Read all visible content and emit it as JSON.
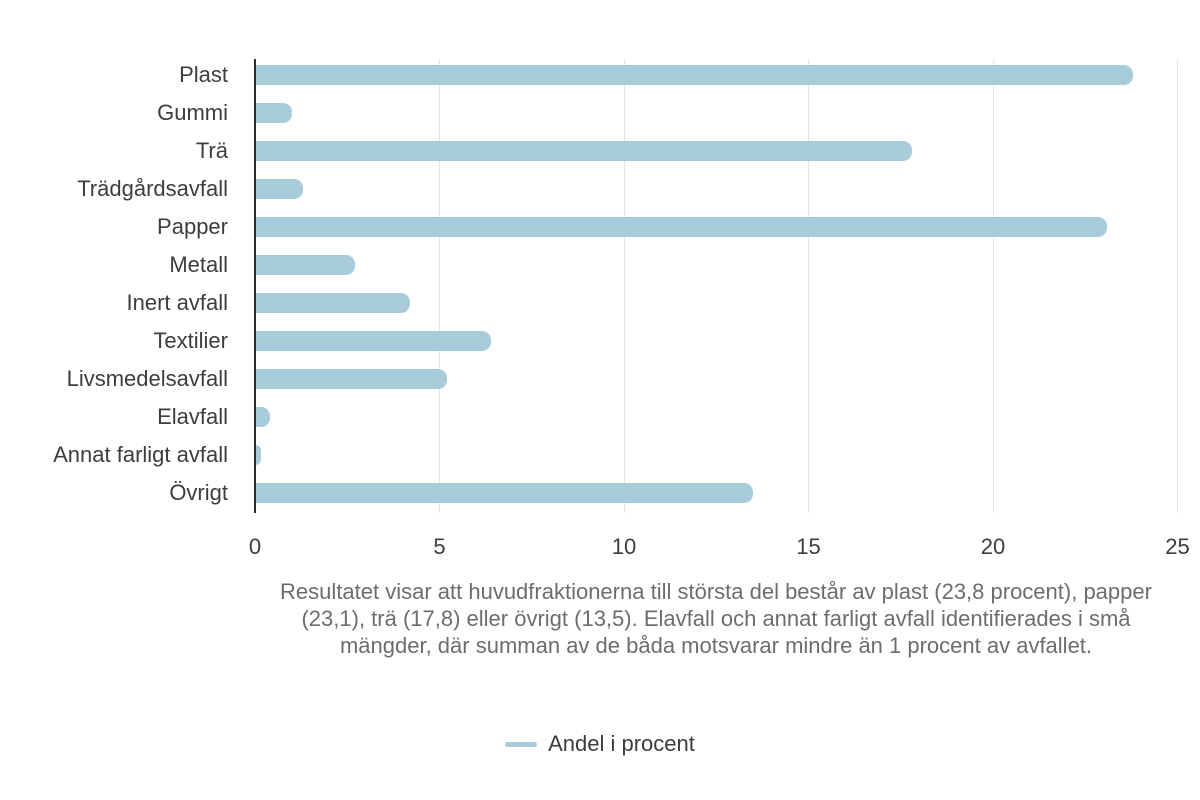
{
  "chart_data": {
    "type": "bar",
    "orientation": "horizontal",
    "title": "",
    "categories": [
      "Plast",
      "Gummi",
      "Trä",
      "Trädgårdsavfall",
      "Papper",
      "Metall",
      "Inert avfall",
      "Textilier",
      "Livsmedelsavfall",
      "Elavfall",
      "Annat farligt avfall",
      "Övrigt"
    ],
    "series": [
      {
        "name": "Andel i procent",
        "values": [
          23.8,
          1.0,
          17.8,
          1.3,
          23.1,
          2.7,
          4.2,
          6.4,
          5.2,
          0.4,
          0.15,
          13.5
        ]
      }
    ],
    "xlabel": "",
    "ylabel": "",
    "xlim": [
      0,
      25
    ],
    "x_ticks": [
      0,
      5,
      10,
      15,
      20,
      25
    ],
    "grid": true,
    "legend_position": "bottom",
    "bar_color": "#a8ccda",
    "caption": "Resultatet visar att huvudfraktionerna till största del består av plast (23,8 procent), papper (23,1), trä (17,8) eller övrigt (13,5). Elavfall och annat farligt avfall identifierades i små mängder, där summan av de båda motsvarar mindre än 1 procent av avfallet."
  },
  "colors": {
    "bar": "#a8ccda",
    "axis_spine": "#2b2b2b",
    "gridline": "#e4e4e4",
    "label_text": "#3d3d3d",
    "caption_text": "#6d6d6d",
    "background": "#ffffff"
  }
}
